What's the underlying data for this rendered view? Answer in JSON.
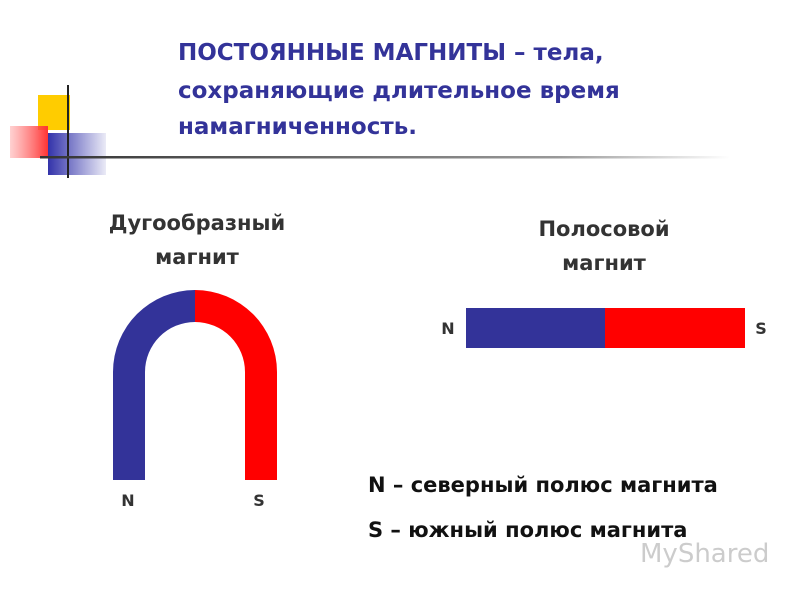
{
  "title": {
    "lines": [
      "ПОСТОЯННЫЕ МАГНИТЫ – тела,",
      "сохраняющие длительное время",
      "намагниченность."
    ]
  },
  "horseshoe": {
    "caption": [
      "Дугообразный",
      "магнит"
    ],
    "north": "N",
    "south": "S"
  },
  "bar": {
    "caption": [
      "Полосовой",
      "магнит"
    ],
    "north": "N",
    "south": "S"
  },
  "legend": [
    "N – северный полюс магнита",
    "S – южный полюс магнита"
  ],
  "watermark": "MyShared"
}
